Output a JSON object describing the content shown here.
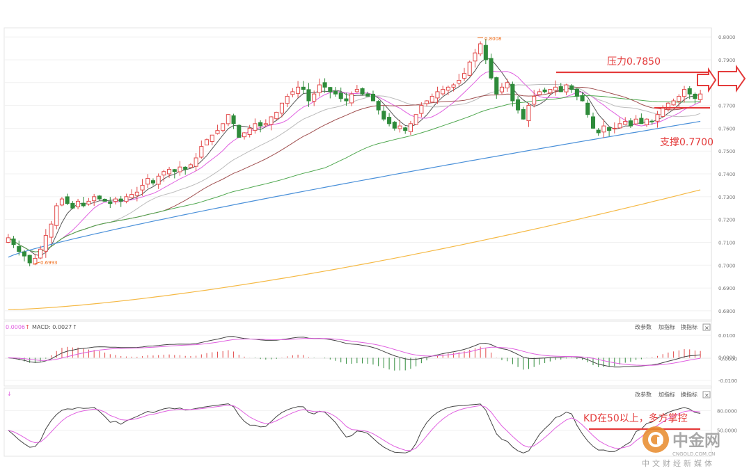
{
  "chart_data": [
    {
      "type": "candlestick",
      "ylim": [
        0.676,
        0.804
      ],
      "y_ticks": [
        "0.8000",
        "0.7900",
        "0.7800",
        "0.7700",
        "0.7600",
        "0.7500",
        "0.7400",
        "0.7300",
        "0.7200",
        "0.7100",
        "0.7000",
        "0.6900",
        "0.6800"
      ],
      "marked_high": "0.8008",
      "marked_low": "0.6993",
      "closes": [
        0.712,
        0.709,
        0.706,
        0.704,
        0.701,
        0.703,
        0.707,
        0.713,
        0.718,
        0.726,
        0.729,
        0.727,
        0.725,
        0.728,
        0.726,
        0.728,
        0.73,
        0.729,
        0.728,
        0.727,
        0.729,
        0.728,
        0.73,
        0.731,
        0.732,
        0.735,
        0.738,
        0.736,
        0.739,
        0.741,
        0.742,
        0.741,
        0.743,
        0.742,
        0.744,
        0.747,
        0.752,
        0.755,
        0.757,
        0.759,
        0.762,
        0.766,
        0.762,
        0.756,
        0.758,
        0.76,
        0.762,
        0.761,
        0.762,
        0.765,
        0.767,
        0.771,
        0.774,
        0.776,
        0.778,
        0.777,
        0.772,
        0.775,
        0.779,
        0.778,
        0.776,
        0.775,
        0.773,
        0.772,
        0.775,
        0.777,
        0.775,
        0.774,
        0.772,
        0.768,
        0.764,
        0.762,
        0.76,
        0.761,
        0.759,
        0.762,
        0.766,
        0.77,
        0.772,
        0.774,
        0.776,
        0.777,
        0.778,
        0.779,
        0.781,
        0.784,
        0.789,
        0.793,
        0.797,
        0.79,
        0.782,
        0.775,
        0.778,
        0.78,
        0.772,
        0.768,
        0.764,
        0.77,
        0.774,
        0.776,
        0.776,
        0.777,
        0.778,
        0.776,
        0.779,
        0.777,
        0.774,
        0.772,
        0.766,
        0.76,
        0.758,
        0.761,
        0.759,
        0.76,
        0.762,
        0.763,
        0.761,
        0.764,
        0.762,
        0.764,
        0.763,
        0.766,
        0.769,
        0.771,
        0.772,
        0.774,
        0.777,
        0.775,
        0.773,
        0.775
      ],
      "overlay_series": [
        {
          "name": "MA5",
          "color": "#555555"
        },
        {
          "name": "MA10",
          "color": "#e05fe0"
        },
        {
          "name": "MA20",
          "color": "#bbbbbb"
        },
        {
          "name": "MA30",
          "color": "#a05050"
        },
        {
          "name": "MA60",
          "color": "#50a850"
        },
        {
          "name": "MA120",
          "color": "#4a90d9"
        },
        {
          "name": "MA250",
          "color": "#f5b945"
        }
      ],
      "annotations": {
        "resistance_label": "压力0.7850",
        "resistance_value": 0.785,
        "support_label": "支撑0.7700",
        "support_value": 0.77
      },
      "colors": {
        "up": "#e24a4a",
        "down": "#2e8b3a"
      }
    },
    {
      "type": "bar+line",
      "title": "MACD",
      "header_value_1": "0.0006",
      "header_label": "MACD: 0.0027",
      "y_ticks": [
        "0.0100",
        "0.0000",
        "-0.0000",
        "-0.0100"
      ],
      "ylim": [
        -0.0125,
        0.0125
      ]
    },
    {
      "type": "line",
      "title": "KD",
      "y_ticks": [
        "80.0000",
        "50.0000"
      ],
      "ylim": [
        10,
        100
      ],
      "annotation": "KD在50以上，多方掌控",
      "annotation_value": 50
    }
  ],
  "panel_controls": {
    "params_label": "改参数",
    "add_indicator_label": "加指标",
    "switch_indicator_label": "换指标",
    "close_symbol": "×"
  },
  "watermark": {
    "name": "中金网",
    "url": "CNGOLD.COM.CN",
    "tagline": "中文财经新媒体"
  }
}
